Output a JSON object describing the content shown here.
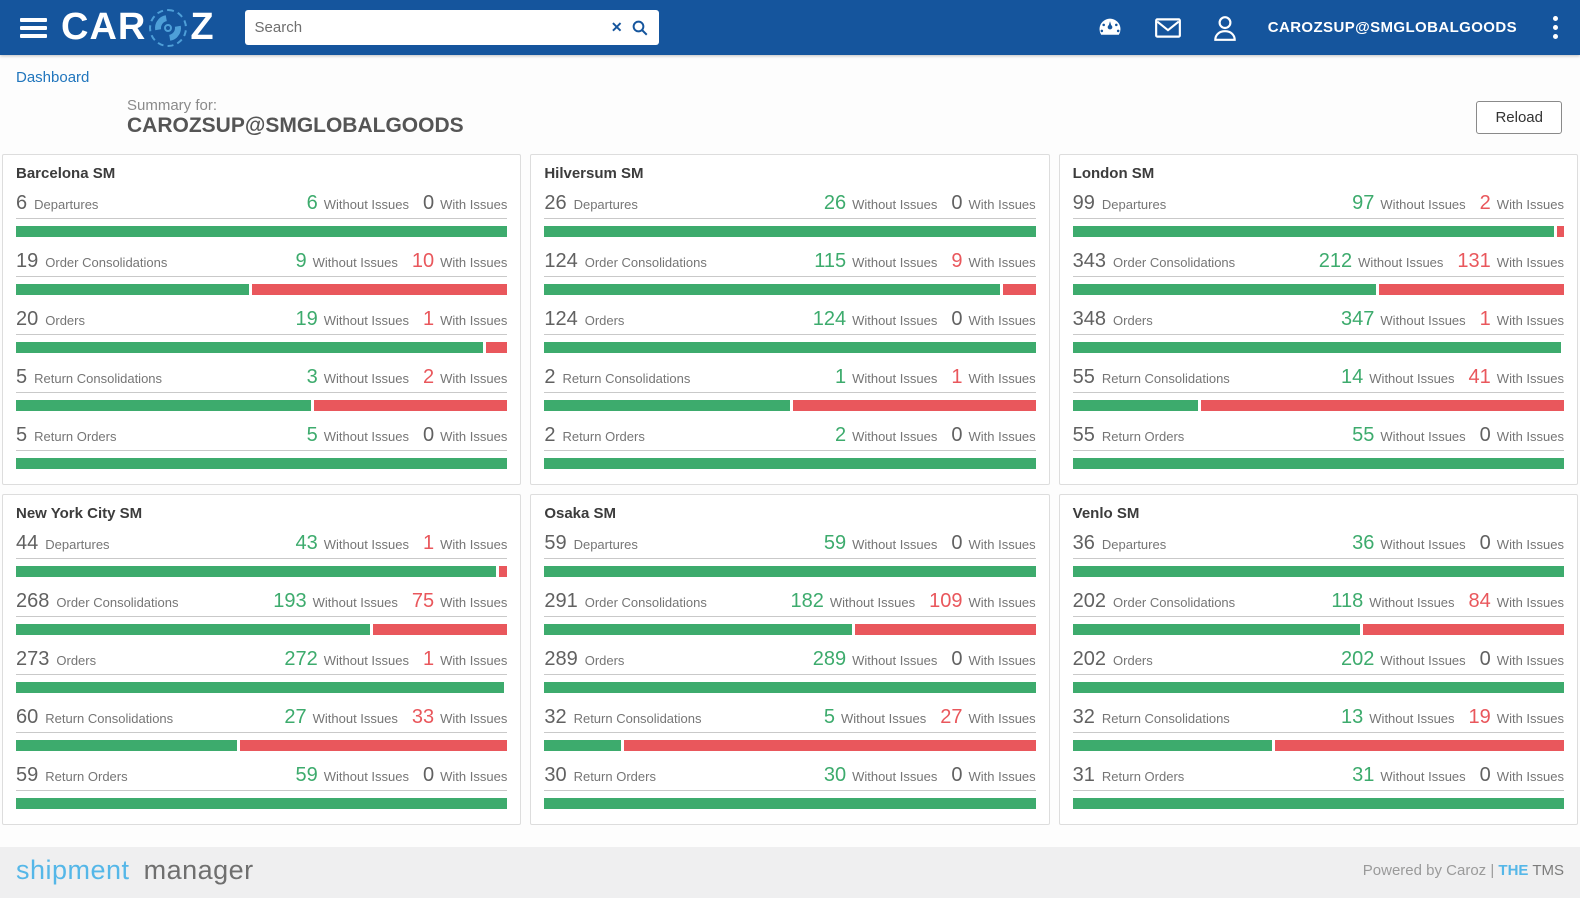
{
  "navbar": {
    "logo_part1": "CAR",
    "logo_part2": "Z",
    "search_placeholder": "Search",
    "username": "CAROZSUP@SMGLOBALGOODS"
  },
  "breadcrumb": {
    "label": "Dashboard"
  },
  "summary": {
    "prefix": "Summary for:",
    "account": "CAROZSUP@SMGLOBALGOODS",
    "reload_label": "Reload"
  },
  "labels": {
    "without": "Without Issues",
    "with": "With Issues"
  },
  "colors": {
    "navbar_blue": "#15559d",
    "green": "#3dab6d",
    "red": "#e9575c",
    "link_blue": "#2176bd",
    "accent_light_blue": "#55b7e8"
  },
  "sites": [
    {
      "name": "Barcelona SM",
      "metrics": [
        {
          "count": 6,
          "label": "Departures",
          "without": 6,
          "with": 0
        },
        {
          "count": 19,
          "label": "Order Consolidations",
          "without": 9,
          "with": 10
        },
        {
          "count": 20,
          "label": "Orders",
          "without": 19,
          "with": 1
        },
        {
          "count": 5,
          "label": "Return Consolidations",
          "without": 3,
          "with": 2
        },
        {
          "count": 5,
          "label": "Return Orders",
          "without": 5,
          "with": 0
        }
      ]
    },
    {
      "name": "Hilversum SM",
      "metrics": [
        {
          "count": 26,
          "label": "Departures",
          "without": 26,
          "with": 0
        },
        {
          "count": 124,
          "label": "Order Consolidations",
          "without": 115,
          "with": 9
        },
        {
          "count": 124,
          "label": "Orders",
          "without": 124,
          "with": 0
        },
        {
          "count": 2,
          "label": "Return Consolidations",
          "without": 1,
          "with": 1
        },
        {
          "count": 2,
          "label": "Return Orders",
          "without": 2,
          "with": 0
        }
      ]
    },
    {
      "name": "London SM",
      "metrics": [
        {
          "count": 99,
          "label": "Departures",
          "without": 97,
          "with": 2
        },
        {
          "count": 343,
          "label": "Order Consolidations",
          "without": 212,
          "with": 131
        },
        {
          "count": 348,
          "label": "Orders",
          "without": 347,
          "with": 1
        },
        {
          "count": 55,
          "label": "Return Consolidations",
          "without": 14,
          "with": 41
        },
        {
          "count": 55,
          "label": "Return Orders",
          "without": 55,
          "with": 0
        }
      ]
    },
    {
      "name": "New York City SM",
      "metrics": [
        {
          "count": 44,
          "label": "Departures",
          "without": 43,
          "with": 1
        },
        {
          "count": 268,
          "label": "Order Consolidations",
          "without": 193,
          "with": 75
        },
        {
          "count": 273,
          "label": "Orders",
          "without": 272,
          "with": 1
        },
        {
          "count": 60,
          "label": "Return Consolidations",
          "without": 27,
          "with": 33
        },
        {
          "count": 59,
          "label": "Return Orders",
          "without": 59,
          "with": 0
        }
      ]
    },
    {
      "name": "Osaka SM",
      "metrics": [
        {
          "count": 59,
          "label": "Departures",
          "without": 59,
          "with": 0
        },
        {
          "count": 291,
          "label": "Order Consolidations",
          "without": 182,
          "with": 109
        },
        {
          "count": 289,
          "label": "Orders",
          "without": 289,
          "with": 0
        },
        {
          "count": 32,
          "label": "Return Consolidations",
          "without": 5,
          "with": 27
        },
        {
          "count": 30,
          "label": "Return Orders",
          "without": 30,
          "with": 0
        }
      ]
    },
    {
      "name": "Venlo SM",
      "metrics": [
        {
          "count": 36,
          "label": "Departures",
          "without": 36,
          "with": 0
        },
        {
          "count": 202,
          "label": "Order Consolidations",
          "without": 118,
          "with": 84
        },
        {
          "count": 202,
          "label": "Orders",
          "without": 202,
          "with": 0
        },
        {
          "count": 32,
          "label": "Return Consolidations",
          "without": 13,
          "with": 19
        },
        {
          "count": 31,
          "label": "Return Orders",
          "without": 31,
          "with": 0
        }
      ]
    }
  ],
  "footer": {
    "brand_part1": "shipment",
    "brand_part2": "manager",
    "powered_prefix": "Powered by Caroz |",
    "powered_the": "THE",
    "powered_tms": "TMS"
  }
}
